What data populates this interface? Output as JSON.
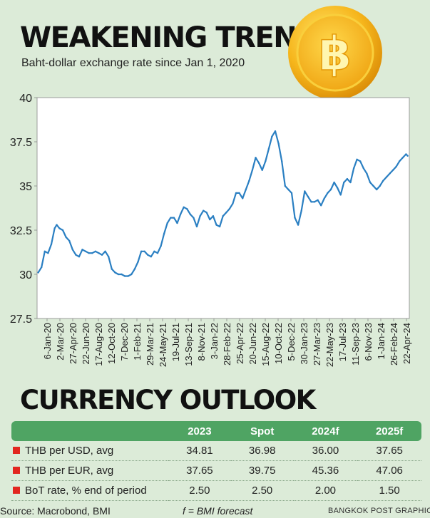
{
  "header": {
    "title": "WEAKENING TREND",
    "subtitle": "Baht-dollar exchange rate since Jan 1, 2020",
    "coin_symbol": "฿"
  },
  "chart_data": {
    "type": "line",
    "title": "WEAKENING TREND",
    "subtitle": "Baht-dollar exchange rate since Jan 1, 2020",
    "xlabel": "",
    "ylabel": "",
    "ylim": [
      27.5,
      40
    ],
    "y_ticks": [
      "27.5",
      "30",
      "32.5",
      "35",
      "37.5",
      "40"
    ],
    "x_ticks": [
      "6-Jan-20",
      "2-Mar-20",
      "27-Apr-20",
      "22-Jun-20",
      "17-Aug-20",
      "12-Oct-20",
      "7-Dec-20",
      "1-Feb-21",
      "29-Mar-21",
      "24-May-21",
      "19-Jul-21",
      "13-Sep-21",
      "8-Nov-21",
      "3-Jan-22",
      "28-Feb-22",
      "25-Apr-22",
      "20-Jun-22",
      "15-Aug-22",
      "10-Oct-22",
      "5-Dec-22",
      "30-Jan-23",
      "27-Mar-23",
      "22-May-23",
      "17-Jul-23",
      "11-Sep-23",
      "6-Nov-23",
      "1-Jan-24",
      "26-Feb-24",
      "22-Apr-24"
    ],
    "grid": false,
    "line_color": "#2a7fc2",
    "series": [
      {
        "x": [
          "2020-01-06",
          "2020-01-20",
          "2020-02-03",
          "2020-02-17",
          "2020-03-02",
          "2020-03-16",
          "2020-03-25",
          "2020-04-06",
          "2020-04-20",
          "2020-05-04",
          "2020-05-18",
          "2020-06-01",
          "2020-06-15",
          "2020-06-29",
          "2020-07-13",
          "2020-07-27",
          "2020-08-10",
          "2020-08-24",
          "2020-09-07",
          "2020-09-21",
          "2020-10-05",
          "2020-10-19",
          "2020-11-02",
          "2020-11-16",
          "2020-11-30",
          "2020-12-14",
          "2020-12-28",
          "2021-01-11",
          "2021-01-25",
          "2021-02-08",
          "2021-02-22",
          "2021-03-08",
          "2021-03-22",
          "2021-04-05",
          "2021-04-19",
          "2021-05-03",
          "2021-05-17",
          "2021-05-31",
          "2021-06-14",
          "2021-06-28",
          "2021-07-12",
          "2021-07-26",
          "2021-08-09",
          "2021-08-23",
          "2021-09-06",
          "2021-09-20",
          "2021-10-04",
          "2021-10-18",
          "2021-11-01",
          "2021-11-15",
          "2021-11-29",
          "2021-12-13",
          "2021-12-27",
          "2022-01-10",
          "2022-01-24",
          "2022-02-07",
          "2022-02-21",
          "2022-03-07",
          "2022-03-21",
          "2022-04-04",
          "2022-04-18",
          "2022-05-02",
          "2022-05-16",
          "2022-05-30",
          "2022-06-13",
          "2022-06-27",
          "2022-07-11",
          "2022-07-25",
          "2022-08-08",
          "2022-08-22",
          "2022-09-05",
          "2022-09-19",
          "2022-10-03",
          "2022-10-17",
          "2022-10-31",
          "2022-11-14",
          "2022-11-28",
          "2022-12-12",
          "2022-12-26",
          "2023-01-09",
          "2023-01-23",
          "2023-02-06",
          "2023-02-20",
          "2023-03-06",
          "2023-03-20",
          "2023-04-03",
          "2023-04-17",
          "2023-05-01",
          "2023-05-15",
          "2023-05-29",
          "2023-06-12",
          "2023-06-26",
          "2023-07-10",
          "2023-07-24",
          "2023-08-07",
          "2023-08-21",
          "2023-09-04",
          "2023-09-18",
          "2023-10-02",
          "2023-10-16",
          "2023-10-30",
          "2023-11-13",
          "2023-11-27",
          "2023-12-11",
          "2023-12-25",
          "2024-01-08",
          "2024-01-22",
          "2024-02-05",
          "2024-02-19",
          "2024-03-04",
          "2024-03-18",
          "2024-04-01",
          "2024-04-15",
          "2024-04-29",
          "2024-05-06"
        ],
        "values": [
          30.1,
          30.4,
          31.3,
          31.2,
          31.7,
          32.6,
          32.8,
          32.6,
          32.5,
          32.1,
          31.9,
          31.4,
          31.1,
          31.0,
          31.4,
          31.3,
          31.2,
          31.2,
          31.3,
          31.2,
          31.1,
          31.3,
          31.0,
          30.3,
          30.1,
          30.0,
          30.0,
          29.9,
          29.9,
          30.0,
          30.3,
          30.7,
          31.3,
          31.3,
          31.1,
          31.0,
          31.3,
          31.2,
          31.6,
          32.3,
          32.9,
          33.2,
          33.2,
          32.9,
          33.4,
          33.8,
          33.7,
          33.4,
          33.2,
          32.7,
          33.3,
          33.6,
          33.5,
          33.1,
          33.3,
          32.8,
          32.7,
          33.3,
          33.5,
          33.7,
          34.0,
          34.6,
          34.6,
          34.3,
          34.8,
          35.3,
          35.9,
          36.6,
          36.3,
          35.9,
          36.4,
          37.1,
          37.8,
          38.1,
          37.4,
          36.4,
          35.0,
          34.8,
          34.6,
          33.2,
          32.8,
          33.6,
          34.7,
          34.4,
          34.1,
          34.1,
          34.2,
          33.9,
          34.3,
          34.6,
          34.8,
          35.2,
          34.9,
          34.5,
          35.2,
          35.4,
          35.2,
          36.0,
          36.5,
          36.4,
          36.0,
          35.7,
          35.2,
          35.0,
          34.8,
          35.0,
          35.3,
          35.5,
          35.7,
          35.9,
          36.1,
          36.4,
          36.6,
          36.8,
          36.7
        ]
      }
    ]
  },
  "outlook": {
    "title": "CURRENCY OUTLOOK",
    "columns": [
      "",
      "2023",
      "Spot",
      "2024f",
      "2025f"
    ],
    "rows": [
      {
        "label": "THB per USD, avg",
        "values": [
          "34.81",
          "36.98",
          "36.00",
          "37.65"
        ]
      },
      {
        "label": "THB per EUR, avg",
        "values": [
          "37.65",
          "39.75",
          "45.36",
          "47.06"
        ]
      },
      {
        "label": "BoT rate, % end of period",
        "values": [
          "2.50",
          "2.50",
          "2.00",
          "1.50"
        ]
      }
    ],
    "marker_color": "#e2261f",
    "header_color": "#4fa463"
  },
  "footer": {
    "source": "Source: Macrobond, BMI",
    "forecast_note": "f = BMI forecast",
    "credit": "BANGKOK POST GRAPHICS"
  }
}
